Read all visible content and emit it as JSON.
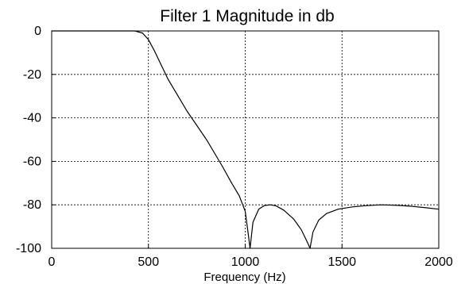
{
  "chart_data": {
    "type": "line",
    "title": "Filter 1 Magnitude in db",
    "xlabel": "Frequency (Hz)",
    "ylabel": "",
    "xlim": [
      0,
      2000
    ],
    "ylim": [
      -100,
      0
    ],
    "x_ticks": [
      0,
      500,
      1000,
      1500,
      2000
    ],
    "y_ticks": [
      0,
      -20,
      -40,
      -60,
      -80,
      -100
    ],
    "grid": true,
    "legend": "none",
    "line_color": "#000000",
    "series": [
      {
        "x": [
          0,
          430,
          470,
          500,
          530,
          600,
          700,
          800,
          880,
          930,
          970,
          1000,
          1015,
          1025,
          1040,
          1070,
          1100,
          1130,
          1160,
          1200,
          1250,
          1290,
          1320,
          1335,
          1350,
          1380,
          1420,
          1480,
          1550,
          1620,
          1700,
          1780,
          1850,
          1920,
          2000
        ],
        "y": [
          0,
          0,
          -1,
          -4,
          -9,
          -22,
          -37,
          -50,
          -62,
          -70,
          -76,
          -83,
          -93,
          -100,
          -88,
          -82,
          -80.3,
          -80,
          -80.5,
          -82.5,
          -86.5,
          -91.5,
          -97,
          -100,
          -92.5,
          -87,
          -84,
          -82,
          -81,
          -80.4,
          -80,
          -80.2,
          -80.6,
          -81.2,
          -82
        ]
      }
    ]
  }
}
